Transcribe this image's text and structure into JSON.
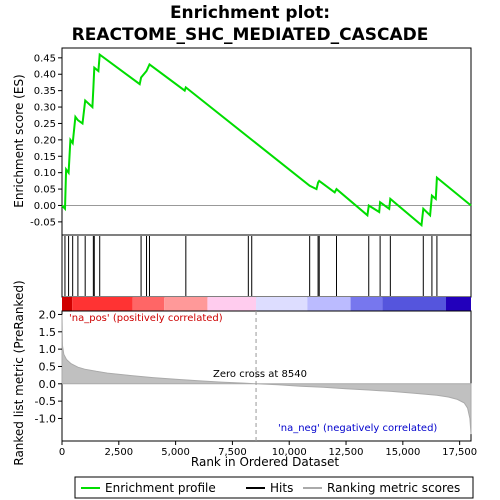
{
  "chart_data": {
    "type": "line",
    "title_line1": "Enrichment plot:",
    "title_line2": "REACTOME_SHC_MEDIATED_CASCADE",
    "top_panel": {
      "ylabel": "Enrichment score (ES)",
      "ylim": [
        -0.09,
        0.48
      ],
      "yticks": [
        -0.05,
        0.0,
        0.05,
        0.1,
        0.15,
        0.2,
        0.25,
        0.3,
        0.35,
        0.4,
        0.45
      ],
      "ytick_labels": [
        "-0.05",
        "0.00",
        "0.05",
        "0.10",
        "0.15",
        "0.20",
        "0.25",
        "0.30",
        "0.35",
        "0.40",
        "0.45"
      ],
      "es_profile": {
        "x": [
          0,
          130,
          180,
          290,
          370,
          470,
          590,
          700,
          900,
          1020,
          1340,
          1380,
          1420,
          1600,
          1660,
          3420,
          3480,
          3720,
          3850,
          5400,
          5450,
          10900,
          11200,
          11270,
          11320,
          12000,
          12080,
          13440,
          13500,
          13960,
          14000,
          14400,
          14450,
          15820,
          15900,
          16200,
          16280,
          16450,
          16500,
          18000
        ],
        "y": [
          0.0,
          -0.01,
          0.11,
          0.1,
          0.2,
          0.19,
          0.27,
          0.26,
          0.25,
          0.32,
          0.3,
          0.36,
          0.42,
          0.41,
          0.46,
          0.37,
          0.39,
          0.41,
          0.43,
          0.35,
          0.36,
          0.06,
          0.05,
          0.07,
          0.075,
          0.04,
          0.05,
          -0.03,
          0.0,
          -0.02,
          0.01,
          -0.01,
          0.02,
          -0.06,
          -0.01,
          -0.03,
          0.03,
          0.02,
          0.085,
          0.0
        ]
      }
    },
    "hits_panel": {
      "hit_positions": [
        130,
        290,
        470,
        700,
        1020,
        1380,
        1420,
        1660,
        3480,
        3720,
        3850,
        5450,
        8200,
        8350,
        10900,
        11270,
        11320,
        12080,
        13500,
        14000,
        14450,
        15900,
        16280,
        16500
      ]
    },
    "color_bar": {
      "segments": [
        {
          "from": 0,
          "to": 450,
          "color": "#d00000"
        },
        {
          "from": 450,
          "to": 3100,
          "color": "#ff3333"
        },
        {
          "from": 3100,
          "to": 4500,
          "color": "#ff6666"
        },
        {
          "from": 4500,
          "to": 6400,
          "color": "#ff9999"
        },
        {
          "from": 6400,
          "to": 8540,
          "color": "#ffccee"
        },
        {
          "from": 8540,
          "to": 10800,
          "color": "#ddddff"
        },
        {
          "from": 10800,
          "to": 12700,
          "color": "#bbbbff"
        },
        {
          "from": 12700,
          "to": 14100,
          "color": "#7777ee"
        },
        {
          "from": 14100,
          "to": 16900,
          "color": "#5555dd"
        },
        {
          "from": 16900,
          "to": 18000,
          "color": "#2200bb"
        }
      ]
    },
    "bottom_panel": {
      "ylabel": "Ranked list metric (PreRanked)",
      "xlabel": "Rank in Ordered Dataset",
      "ylim": [
        -1.65,
        2.1
      ],
      "yticks": [
        -1.0,
        -0.5,
        0.0,
        0.5,
        1.0,
        1.5,
        2.0
      ],
      "ytick_labels": [
        "-1.0",
        "-0.5",
        "0.0",
        "0.5",
        "1.0",
        "1.5",
        "2.0"
      ],
      "xlim": [
        0,
        18000
      ],
      "xticks": [
        0,
        2500,
        5000,
        7500,
        10000,
        12500,
        15000,
        17500
      ],
      "xtick_labels": [
        "0",
        "2,500",
        "5,000",
        "7,500",
        "10,000",
        "12,500",
        "15,000",
        "17,500"
      ],
      "metric_curve": {
        "x": [
          0,
          20,
          80,
          200,
          400,
          700,
          1000,
          1500,
          2000,
          3000,
          4000,
          5000,
          6000,
          7000,
          8000,
          8540,
          9500,
          10500,
          11500,
          12500,
          13500,
          14500,
          15500,
          16500,
          17000,
          17400,
          17700,
          17850,
          17950,
          18000
        ],
        "y": [
          2.0,
          1.1,
          0.85,
          0.7,
          0.58,
          0.48,
          0.42,
          0.36,
          0.31,
          0.24,
          0.18,
          0.13,
          0.09,
          0.05,
          0.02,
          0.0,
          -0.03,
          -0.07,
          -0.1,
          -0.14,
          -0.18,
          -0.22,
          -0.27,
          -0.33,
          -0.38,
          -0.45,
          -0.55,
          -0.7,
          -1.0,
          -1.45
        ]
      },
      "zero_cross": 8540,
      "zero_cross_label": "Zero cross at 8540",
      "pos_label": "'na_pos' (positively correlated)",
      "neg_label": "'na_neg' (negatively correlated)"
    },
    "legend": {
      "entries": [
        {
          "label": "Enrichment profile",
          "color": "#00dd00"
        },
        {
          "label": "Hits",
          "color": "#000000"
        },
        {
          "label": "Ranking metric scores",
          "color": "#aaaaaa"
        }
      ]
    }
  }
}
